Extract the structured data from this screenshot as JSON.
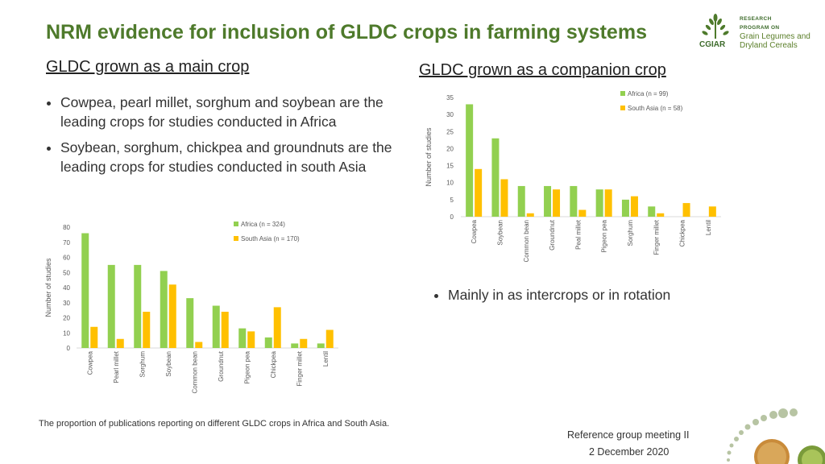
{
  "header": {
    "title": "NRM evidence for inclusion of GLDC crops in farming systems",
    "left_subtitle": "GLDC grown as a main crop",
    "right_subtitle": "GLDC grown as a companion crop"
  },
  "left_bullets": [
    "Cowpea, pearl millet, sorghum and  soybean are the leading crops for studies conducted in Africa",
    "Soybean, sorghum, chickpea and groundnuts are the leading crops for studies conducted in south Asia"
  ],
  "right_bullets": [
    "Mainly in as intercrops or in rotation"
  ],
  "caption": "The proportion of publications reporting on different GLDC crops in Africa and South Asia.",
  "footer": {
    "meeting": "Reference group meeting II",
    "date": "2 December 2020"
  },
  "logo": {
    "line1": "RESEARCH",
    "line2": "PROGRAM ON",
    "line3": "Grain Legumes and",
    "line4": "Dryland Cereals",
    "org": "CGIAR"
  },
  "colors": {
    "title": "#4e7a2b",
    "africa": "#92d050",
    "south_asia": "#ffc000"
  },
  "chart_data": [
    {
      "id": "main",
      "type": "bar",
      "title": "",
      "ylabel": "Number of studies",
      "ylim": [
        0,
        80
      ],
      "yticks": [
        0,
        10,
        20,
        30,
        40,
        50,
        60,
        70,
        80
      ],
      "categories": [
        "Cowpea",
        "Pearl millet",
        "Sorghum",
        "Soybean",
        "Common bean",
        "Groundnut",
        "Pigeon pea",
        "Chickpea",
        "Finger millet",
        "Lentil"
      ],
      "series": [
        {
          "name": "Africa (n = 324)",
          "values": [
            76,
            55,
            55,
            51,
            33,
            28,
            13,
            7,
            3,
            3
          ]
        },
        {
          "name": "South Asia (n = 170)",
          "values": [
            14,
            6,
            24,
            42,
            4,
            24,
            11,
            27,
            6,
            12
          ]
        }
      ],
      "legend": "top-right"
    },
    {
      "id": "companion",
      "type": "bar",
      "title": "",
      "ylabel": "Number of studies",
      "ylim": [
        0,
        35
      ],
      "yticks": [
        0,
        5,
        10,
        15,
        20,
        25,
        30,
        35
      ],
      "categories": [
        "Cowpea",
        "Soybean",
        "Common bean",
        "Groundnut",
        "Peal millet",
        "Pigeon pea",
        "Sorghum",
        "Finger millet",
        "Chickpea",
        "Lentil"
      ],
      "series": [
        {
          "name": "Africa (n = 99)",
          "values": [
            33,
            23,
            9,
            9,
            9,
            8,
            5,
            3,
            0,
            0
          ]
        },
        {
          "name": "South Asia (n = 58)",
          "values": [
            14,
            11,
            1,
            8,
            2,
            8,
            6,
            1,
            4,
            3
          ]
        }
      ],
      "legend": "top-right"
    }
  ]
}
